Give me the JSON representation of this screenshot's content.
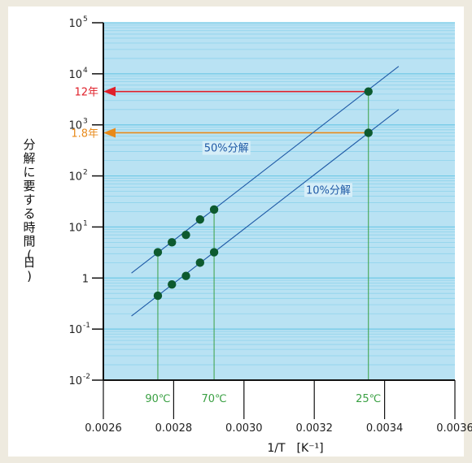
{
  "chart_data": {
    "type": "scatter",
    "title": "",
    "xlabel": "1/T　[K⁻¹]",
    "ylabel": "分解に要する時間(日)",
    "xlim": [
      0.0026,
      0.0036
    ],
    "ylim_log10": [
      -2,
      5
    ],
    "y_scale": "log",
    "grid": "horizontal",
    "background": "#b9e2f3",
    "x_ticks": [
      "0.0026",
      "0.0028",
      "0.0030",
      "0.0032",
      "0.0034",
      "0.0036"
    ],
    "y_ticks": [
      {
        "base": "10",
        "exp": "-2"
      },
      {
        "base": "10",
        "exp": "-1"
      },
      {
        "base": "1",
        "exp": ""
      },
      {
        "base": "10",
        "exp": "1"
      },
      {
        "base": "10",
        "exp": "2"
      },
      {
        "base": "10",
        "exp": "3"
      },
      {
        "base": "10",
        "exp": "4"
      },
      {
        "base": "10",
        "exp": "5"
      }
    ],
    "series": [
      {
        "name": "50%分解",
        "color": "#1f5aa6",
        "points": [
          {
            "x": 0.002755,
            "y": 3.2
          },
          {
            "x": 0.002795,
            "y": 5.0
          },
          {
            "x": 0.002835,
            "y": 7.0
          },
          {
            "x": 0.002875,
            "y": 14.0
          },
          {
            "x": 0.002915,
            "y": 22.0
          },
          {
            "x": 0.003354,
            "y": 4500
          }
        ],
        "fit": [
          {
            "x": 0.00268,
            "y": 1.25
          },
          {
            "x": 0.00344,
            "y": 14000
          }
        ]
      },
      {
        "name": "10%分解",
        "color": "#1f5aa6",
        "points": [
          {
            "x": 0.002755,
            "y": 0.45
          },
          {
            "x": 0.002795,
            "y": 0.75
          },
          {
            "x": 0.002835,
            "y": 1.1
          },
          {
            "x": 0.002875,
            "y": 2.0
          },
          {
            "x": 0.002915,
            "y": 3.2
          },
          {
            "x": 0.003354,
            "y": 700
          }
        ],
        "fit": [
          {
            "x": 0.00268,
            "y": 0.18
          },
          {
            "x": 0.00344,
            "y": 2000
          }
        ]
      }
    ],
    "point_color": "#0d5a2f",
    "temperature_markers": [
      {
        "label": "90℃",
        "x": 0.002755
      },
      {
        "label": "70℃",
        "x": 0.002915
      },
      {
        "label": "25℃",
        "x": 0.003354
      }
    ],
    "temperature_color": "#3aa043",
    "annotations": [
      {
        "label": "12年",
        "y": 4500,
        "color": "#e0202a"
      },
      {
        "label": "1.8年",
        "y": 700,
        "color": "#e88a1a"
      }
    ]
  }
}
